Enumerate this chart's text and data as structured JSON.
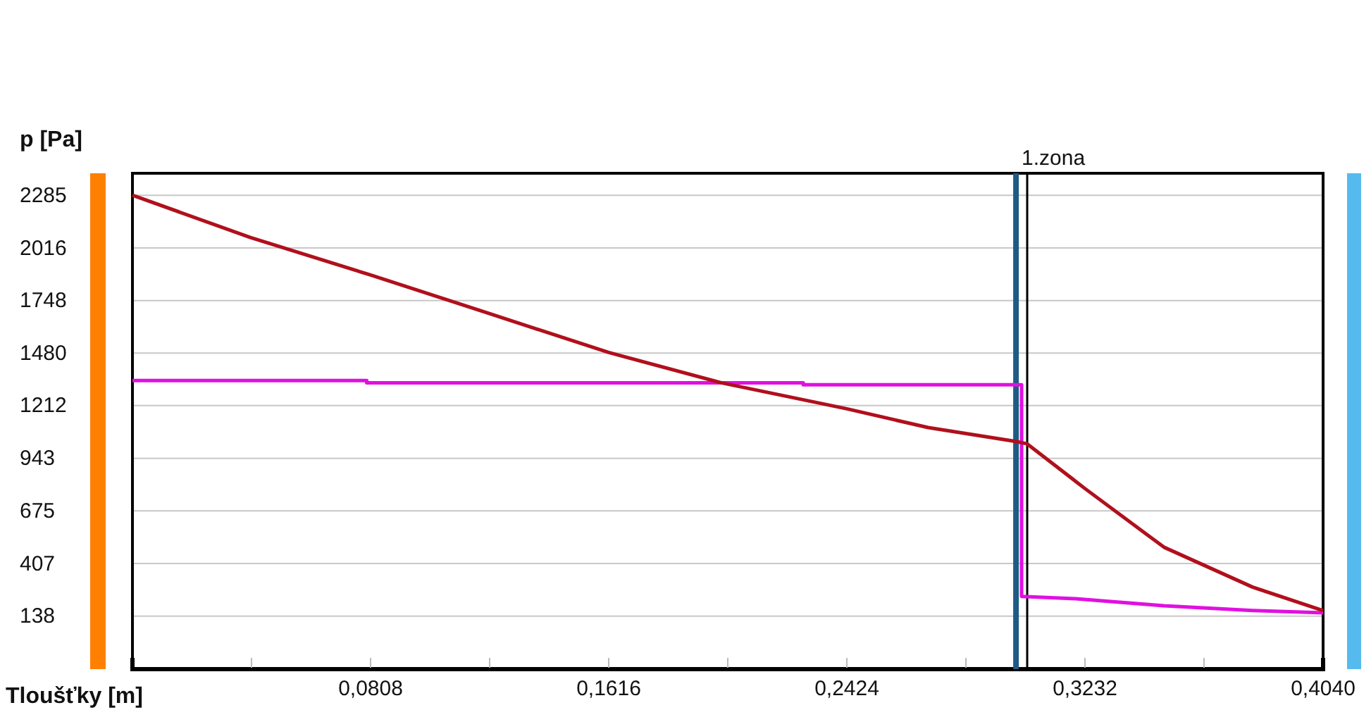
{
  "chart_data": {
    "type": "line",
    "xlabel": "Tloušťky [m]",
    "ylabel": "p [Pa]",
    "xlim": [
      0,
      0.404
    ],
    "ylim": [
      -132,
      2397
    ],
    "xticks": [
      {
        "value": 0,
        "label": null
      },
      {
        "value": 0.0404,
        "label": null
      },
      {
        "value": 0.0808,
        "label": "0,0808"
      },
      {
        "value": 0.1212,
        "label": null
      },
      {
        "value": 0.1616,
        "label": "0,1616"
      },
      {
        "value": 0.202,
        "label": null
      },
      {
        "value": 0.2424,
        "label": "0,2424"
      },
      {
        "value": 0.2828,
        "label": null
      },
      {
        "value": 0.3232,
        "label": "0,3232"
      },
      {
        "value": 0.3636,
        "label": null
      },
      {
        "value": 0.404,
        "label": "0,4040"
      }
    ],
    "yticks": [
      138,
      407,
      675,
      943,
      1212,
      1480,
      1748,
      2016,
      2285
    ],
    "grid": "y",
    "series": [
      {
        "color": "#e010e0",
        "x": [
          0,
          0.0795,
          0.0795,
          0.2276,
          0.2276,
          0.2998,
          0.3017,
          0.3017,
          0.32,
          0.35,
          0.38,
          0.404
        ],
        "values": [
          1340,
          1340,
          1328,
          1328,
          1318,
          1318,
          1318,
          239,
          227,
          191,
          167,
          155
        ]
      },
      {
        "color": "#b0101c",
        "x": [
          0,
          0.04,
          0.0808,
          0.12,
          0.1616,
          0.2,
          0.2424,
          0.27,
          0.2998,
          0.3036,
          0.3232,
          0.35,
          0.38,
          0.404
        ],
        "values": [
          2285,
          2070,
          1878,
          1687,
          1483,
          1328,
          1196,
          1100,
          1029,
          1017,
          789,
          490,
          287,
          167
        ]
      }
    ],
    "ref_lines": [
      {
        "axis": "x",
        "value": 0.2998,
        "label": null,
        "color": "#1f5a85"
      },
      {
        "axis": "x",
        "value": 0.3036,
        "label": "1.zona",
        "color": "#000000"
      }
    ]
  }
}
